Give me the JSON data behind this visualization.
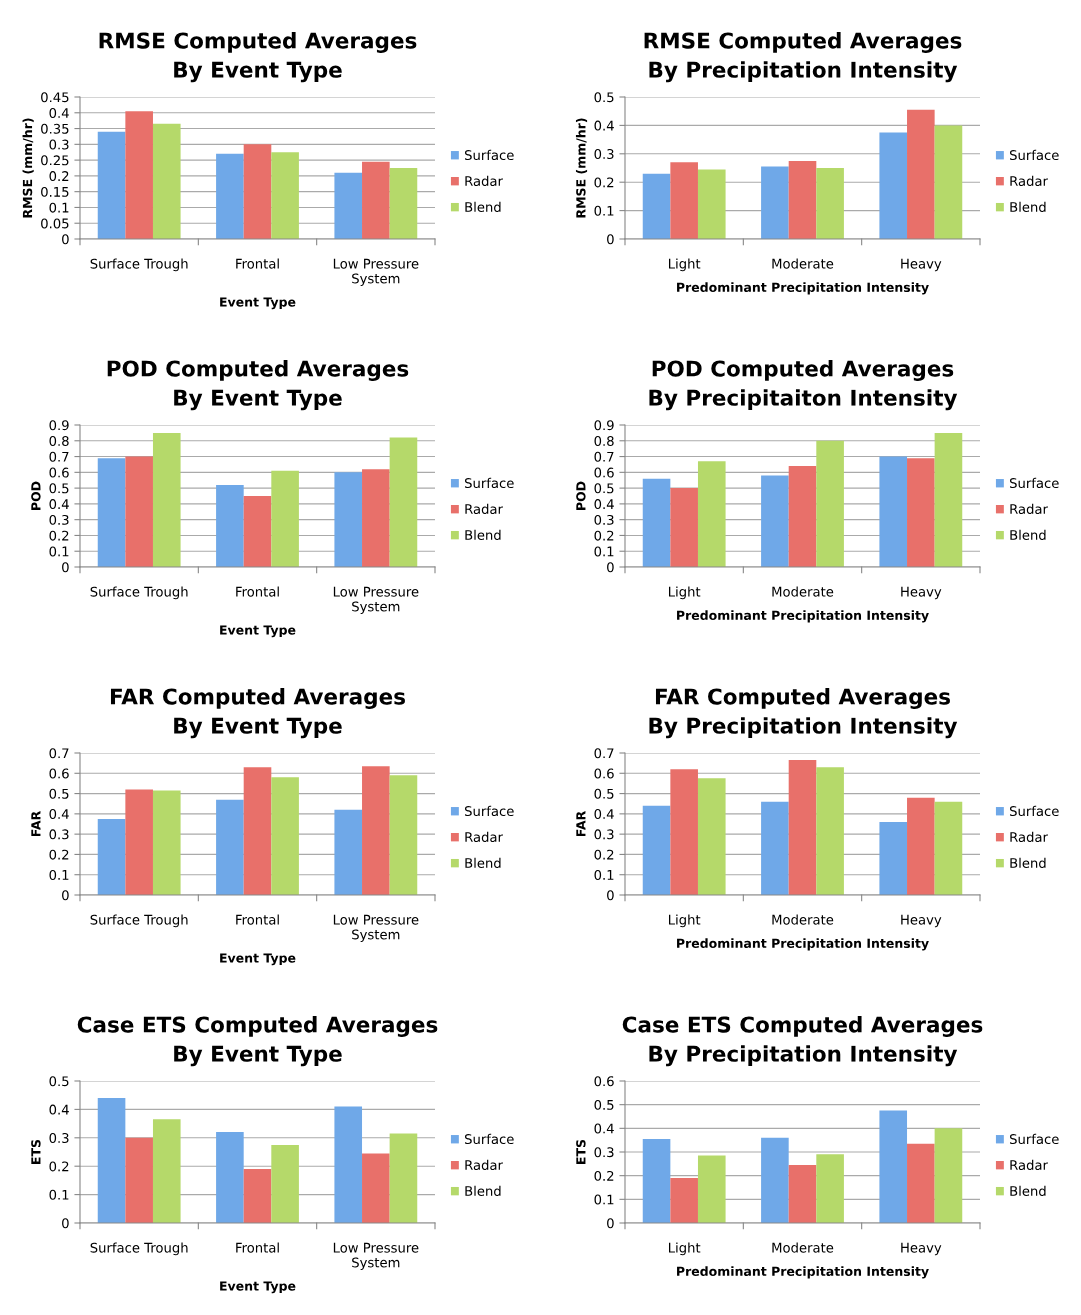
{
  "chart_data": [
    {
      "type": "bar",
      "title": "RMSE Computed Averages\nBy Event Type",
      "xlabel": "Event Type",
      "ylabel": "RMSE (mm/hr)",
      "categories": [
        "Surface Trough",
        "Frontal",
        "Low Pressure\nSystem"
      ],
      "ylim": [
        0,
        0.45
      ],
      "yticks": [
        0,
        0.05,
        0.1,
        0.15,
        0.2,
        0.25,
        0.3,
        0.35,
        0.4,
        0.45
      ],
      "grid": "y",
      "legend": "right",
      "series": [
        {
          "name": "Surface",
          "color": "#6fa8e8",
          "values": [
            0.34,
            0.27,
            0.21
          ]
        },
        {
          "name": "Radar",
          "color": "#e8706a",
          "values": [
            0.405,
            0.3,
            0.245
          ]
        },
        {
          "name": "Blend",
          "color": "#b5d96a",
          "values": [
            0.365,
            0.275,
            0.225
          ]
        }
      ]
    },
    {
      "type": "bar",
      "title": "RMSE Computed Averages\nBy Precipitation Intensity",
      "xlabel": "Predominant Precipitation Intensity",
      "ylabel": "RMSE (mm/hr)",
      "categories": [
        "Light",
        "Moderate",
        "Heavy"
      ],
      "ylim": [
        0,
        0.5
      ],
      "yticks": [
        0,
        0.1,
        0.2,
        0.3,
        0.4,
        0.5
      ],
      "grid": "y",
      "legend": "right",
      "series": [
        {
          "name": "Surface",
          "color": "#6fa8e8",
          "values": [
            0.23,
            0.255,
            0.375
          ]
        },
        {
          "name": "Radar",
          "color": "#e8706a",
          "values": [
            0.27,
            0.275,
            0.455
          ]
        },
        {
          "name": "Blend",
          "color": "#b5d96a",
          "values": [
            0.245,
            0.25,
            0.4
          ]
        }
      ]
    },
    {
      "type": "bar",
      "title": "POD Computed Averages\nBy Event Type",
      "xlabel": "Event Type",
      "ylabel": "POD",
      "categories": [
        "Surface Trough",
        "Frontal",
        "Low Pressure\nSystem"
      ],
      "ylim": [
        0,
        0.9
      ],
      "yticks": [
        0,
        0.1,
        0.2,
        0.3,
        0.4,
        0.5,
        0.6,
        0.7,
        0.8,
        0.9
      ],
      "grid": "y",
      "legend": "right",
      "series": [
        {
          "name": "Surface",
          "color": "#6fa8e8",
          "values": [
            0.69,
            0.52,
            0.6
          ]
        },
        {
          "name": "Radar",
          "color": "#e8706a",
          "values": [
            0.7,
            0.45,
            0.62
          ]
        },
        {
          "name": "Blend",
          "color": "#b5d96a",
          "values": [
            0.85,
            0.61,
            0.82
          ]
        }
      ]
    },
    {
      "type": "bar",
      "title": "POD Computed Averages\nBy Precipitaiton Intensity",
      "xlabel": "Predominant Precipitation Intensity",
      "ylabel": "POD",
      "categories": [
        "Light",
        "Moderate",
        "Heavy"
      ],
      "ylim": [
        0,
        0.9
      ],
      "yticks": [
        0,
        0.1,
        0.2,
        0.3,
        0.4,
        0.5,
        0.6,
        0.7,
        0.8,
        0.9
      ],
      "grid": "y",
      "legend": "right",
      "series": [
        {
          "name": "Surface",
          "color": "#6fa8e8",
          "values": [
            0.56,
            0.58,
            0.7
          ]
        },
        {
          "name": "Radar",
          "color": "#e8706a",
          "values": [
            0.5,
            0.64,
            0.69
          ]
        },
        {
          "name": "Blend",
          "color": "#b5d96a",
          "values": [
            0.67,
            0.8,
            0.85
          ]
        }
      ]
    },
    {
      "type": "bar",
      "title": "FAR Computed Averages\nBy Event Type",
      "xlabel": "Event Type",
      "ylabel": "FAR",
      "categories": [
        "Surface Trough",
        "Frontal",
        "Low Pressure\nSystem"
      ],
      "ylim": [
        0,
        0.7
      ],
      "yticks": [
        0,
        0.1,
        0.2,
        0.3,
        0.4,
        0.5,
        0.6,
        0.7
      ],
      "grid": "y",
      "legend": "right",
      "series": [
        {
          "name": "Surface",
          "color": "#6fa8e8",
          "values": [
            0.375,
            0.47,
            0.42
          ]
        },
        {
          "name": "Radar",
          "color": "#e8706a",
          "values": [
            0.52,
            0.63,
            0.635
          ]
        },
        {
          "name": "Blend",
          "color": "#b5d96a",
          "values": [
            0.515,
            0.58,
            0.59
          ]
        }
      ]
    },
    {
      "type": "bar",
      "title": "FAR Computed Averages\nBy Precipitation Intensity",
      "xlabel": "Predominant Precipitation Intensity",
      "ylabel": "FAR",
      "categories": [
        "Light",
        "Moderate",
        "Heavy"
      ],
      "ylim": [
        0,
        0.7
      ],
      "yticks": [
        0,
        0.1,
        0.2,
        0.3,
        0.4,
        0.5,
        0.6,
        0.7
      ],
      "grid": "y",
      "legend": "right",
      "series": [
        {
          "name": "Surface",
          "color": "#6fa8e8",
          "values": [
            0.44,
            0.46,
            0.36
          ]
        },
        {
          "name": "Radar",
          "color": "#e8706a",
          "values": [
            0.62,
            0.665,
            0.48
          ]
        },
        {
          "name": "Blend",
          "color": "#b5d96a",
          "values": [
            0.575,
            0.63,
            0.46
          ]
        }
      ]
    },
    {
      "type": "bar",
      "title": "Case ETS Computed Averages\nBy Event Type",
      "xlabel": "Event Type",
      "ylabel": "ETS",
      "categories": [
        "Surface Trough",
        "Frontal",
        "Low Pressure\nSystem"
      ],
      "ylim": [
        0,
        0.5
      ],
      "yticks": [
        0,
        0.1,
        0.2,
        0.3,
        0.4,
        0.5
      ],
      "grid": "y",
      "legend": "right",
      "series": [
        {
          "name": "Surface",
          "color": "#6fa8e8",
          "values": [
            0.44,
            0.32,
            0.41
          ]
        },
        {
          "name": "Radar",
          "color": "#e8706a",
          "values": [
            0.3,
            0.19,
            0.245
          ]
        },
        {
          "name": "Blend",
          "color": "#b5d96a",
          "values": [
            0.365,
            0.275,
            0.315
          ]
        }
      ]
    },
    {
      "type": "bar",
      "title": "Case ETS Computed Averages\nBy Precipitation Intensity",
      "xlabel": "Predominant Precipitation Intensity",
      "ylabel": "ETS",
      "categories": [
        "Light",
        "Moderate",
        "Heavy"
      ],
      "ylim": [
        0,
        0.6
      ],
      "yticks": [
        0,
        0.1,
        0.2,
        0.3,
        0.4,
        0.5,
        0.6
      ],
      "grid": "y",
      "legend": "right",
      "series": [
        {
          "name": "Surface",
          "color": "#6fa8e8",
          "values": [
            0.355,
            0.36,
            0.475
          ]
        },
        {
          "name": "Radar",
          "color": "#e8706a",
          "values": [
            0.19,
            0.245,
            0.335
          ]
        },
        {
          "name": "Blend",
          "color": "#b5d96a",
          "values": [
            0.285,
            0.29,
            0.4
          ]
        }
      ]
    }
  ]
}
